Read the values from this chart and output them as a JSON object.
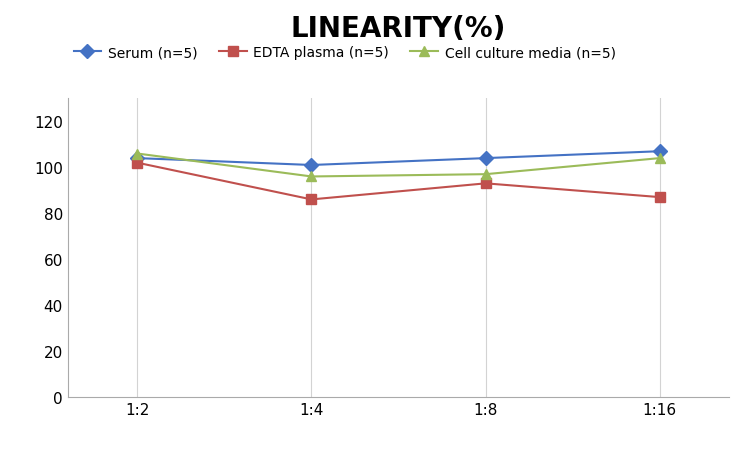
{
  "title": "LINEARITY(%)",
  "x_labels": [
    "1:2",
    "1:4",
    "1:8",
    "1:16"
  ],
  "x_positions": [
    0,
    1,
    2,
    3
  ],
  "series": [
    {
      "label": "Serum (n=5)",
      "values": [
        104,
        101,
        104,
        107
      ],
      "color": "#4472C4",
      "marker": "D",
      "linewidth": 1.5
    },
    {
      "label": "EDTA plasma (n=5)",
      "values": [
        102,
        86,
        93,
        87
      ],
      "color": "#C0504D",
      "marker": "s",
      "linewidth": 1.5
    },
    {
      "label": "Cell culture media (n=5)",
      "values": [
        106,
        96,
        97,
        104
      ],
      "color": "#9BBB59",
      "marker": "^",
      "linewidth": 1.5
    }
  ],
  "ylim": [
    0,
    130
  ],
  "yticks": [
    0,
    20,
    40,
    60,
    80,
    100,
    120
  ],
  "background_color": "#FFFFFF",
  "grid_color": "#D3D3D3",
  "title_fontsize": 20,
  "legend_fontsize": 10,
  "tick_fontsize": 11
}
